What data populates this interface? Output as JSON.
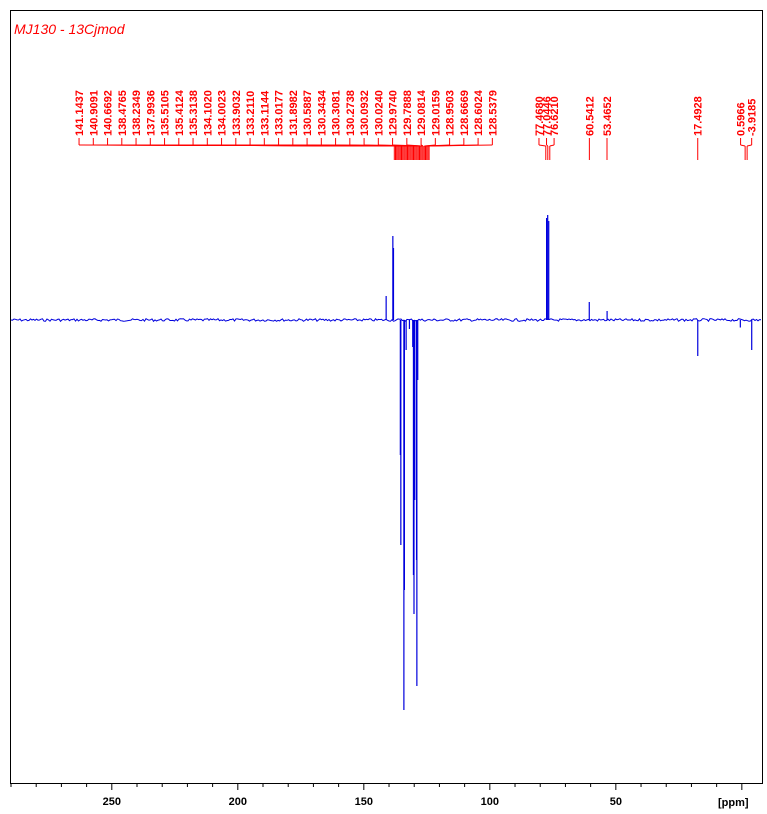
{
  "title": "MJ130 - 13Cjmod",
  "colors": {
    "peaks": "#ff0000",
    "spectrum": "#0000dd",
    "frame": "#000000"
  },
  "chart_data": {
    "type": "line",
    "title": "MJ130 - 13Cjmod",
    "xlabel": "[ppm]",
    "xlim": [
      290,
      -8
    ],
    "x_reversed": true,
    "xticks": [
      250,
      200,
      150,
      100,
      50
    ],
    "xtick_labels": [
      "250",
      "200",
      "150",
      "100",
      "50"
    ],
    "minor_tick_step": 10,
    "grid": false,
    "peak_labels": [
      "141.1437",
      "140.9091",
      "140.6692",
      "138.4765",
      "138.2349",
      "137.9936",
      "135.5105",
      "135.4124",
      "135.3138",
      "134.1020",
      "134.0023",
      "133.9032",
      "133.2110",
      "133.1144",
      "133.0177",
      "131.8982",
      "130.5887",
      "130.3434",
      "130.3081",
      "130.2738",
      "130.0932",
      "130.0240",
      "129.9740",
      "129.7888",
      "129.0814",
      "129.0159",
      "128.9503",
      "128.6669",
      "128.6024",
      "128.5379",
      "77.4680",
      "77.0446",
      "76.6210",
      "60.5412",
      "53.4652",
      "17.4928",
      "0.5966",
      "-3.9185"
    ],
    "peak_label_groups": [
      {
        "count": 30,
        "label_ppm_range": [
          263,
          99
        ],
        "center_ppm": 131
      },
      {
        "count": 3,
        "label_ppm_range": [
          80.5,
          74.5
        ],
        "center_ppm": 77
      },
      {
        "count": 1,
        "label_ppm_range": [
          60.5,
          60.5
        ],
        "center_ppm": 60.5
      },
      {
        "count": 1,
        "label_ppm_range": [
          53.5,
          53.5
        ],
        "center_ppm": 53.5
      },
      {
        "count": 1,
        "label_ppm_range": [
          17.5,
          17.5
        ],
        "center_ppm": 17.5
      },
      {
        "count": 2,
        "label_ppm_range": [
          0.5,
          -3.9
        ],
        "center_ppm": -1.7
      }
    ],
    "series": [
      {
        "peaks": [
          {
            "ppm": 141.14,
            "intensity": 0.08
          },
          {
            "ppm": 138.48,
            "intensity": 0.28
          },
          {
            "ppm": 138.23,
            "intensity": 0.24
          },
          {
            "ppm": 135.51,
            "intensity": -0.45
          },
          {
            "ppm": 135.31,
            "intensity": -0.75
          },
          {
            "ppm": 134.1,
            "intensity": -1.3
          },
          {
            "ppm": 133.9,
            "intensity": -0.9
          },
          {
            "ppm": 133.21,
            "intensity": -0.1
          },
          {
            "ppm": 131.9,
            "intensity": -0.03
          },
          {
            "ppm": 130.59,
            "intensity": -0.09
          },
          {
            "ppm": 130.31,
            "intensity": -0.85
          },
          {
            "ppm": 130.09,
            "intensity": -0.98
          },
          {
            "ppm": 129.79,
            "intensity": -0.6
          },
          {
            "ppm": 129.08,
            "intensity": -0.8
          },
          {
            "ppm": 128.95,
            "intensity": -1.22
          },
          {
            "ppm": 128.6,
            "intensity": -0.2
          },
          {
            "ppm": 77.47,
            "intensity": 0.34
          },
          {
            "ppm": 77.04,
            "intensity": 0.35
          },
          {
            "ppm": 76.62,
            "intensity": 0.33
          },
          {
            "ppm": 60.54,
            "intensity": 0.06
          },
          {
            "ppm": 53.47,
            "intensity": 0.03
          },
          {
            "ppm": 17.49,
            "intensity": -0.12
          },
          {
            "ppm": 0.6,
            "intensity": -0.025
          },
          {
            "ppm": -3.92,
            "intensity": -0.1
          }
        ]
      }
    ]
  }
}
